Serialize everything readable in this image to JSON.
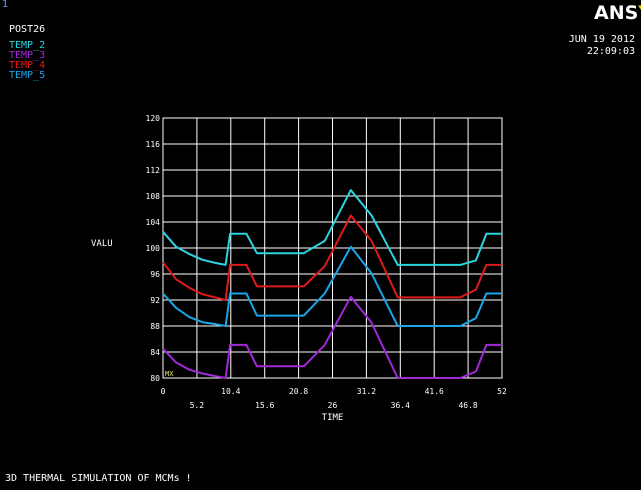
{
  "window_number": "1",
  "processor": "POST26",
  "logo": {
    "main": "ANS",
    "tail": "Y"
  },
  "date": "JUN 19 2012",
  "time": "22:09:03",
  "footer_title": "3D THERMAL SIMULATION OF MCMs !",
  "chart_data": {
    "type": "line",
    "title": "3D THERMAL SIMULATION OF MCMs !",
    "xlabel": "TIME",
    "ylabel": "VALU",
    "xlim": [
      0,
      52
    ],
    "ylim": [
      80,
      120
    ],
    "grid": true,
    "legend_position": "top-left",
    "x_ticks": [
      "0",
      "5.2",
      "10.4",
      "15.6",
      "20.8",
      "26",
      "31.2",
      "36.4",
      "41.6",
      "46.8",
      "52"
    ],
    "y_ticks": [
      "80",
      "84",
      "88",
      "92",
      "96",
      "100",
      "104",
      "108",
      "112",
      "116",
      "120"
    ],
    "axis_marker": "MX",
    "series": [
      {
        "name": "TEMP_2",
        "color": "#2ad4e0",
        "x": [
          0,
          2,
          4,
          6,
          8,
          9.6,
          10.3,
          12.8,
          14.4,
          21.6,
          24.8,
          28.8,
          32,
          36,
          38,
          40,
          43.2,
          45.6,
          48,
          49.6,
          52
        ],
        "y": [
          102.5,
          100.2,
          99.1,
          98.2,
          97.7,
          97.4,
          102.2,
          102.2,
          99.2,
          99.2,
          101.1,
          108.9,
          105,
          97.4,
          97.4,
          97.4,
          97.4,
          97.4,
          98.1,
          102.2,
          102.2
        ]
      },
      {
        "name": "TEMP_3",
        "color": "#a02ad8",
        "x": [
          0,
          2,
          4,
          6,
          8,
          9.6,
          10.3,
          12.8,
          14.4,
          21.6,
          24.8,
          28.8,
          32,
          36,
          38,
          40,
          43.2,
          45.6,
          48,
          49.6,
          52
        ],
        "y": [
          84.5,
          82.4,
          81.3,
          80.7,
          80.3,
          80.0,
          85.1,
          85.1,
          81.8,
          81.8,
          85.1,
          92.5,
          88.5,
          80.0,
          80.0,
          80.0,
          80.0,
          80.0,
          81.0,
          85.1,
          85.1
        ]
      },
      {
        "name": "TEMP_4",
        "color": "#e01a1a",
        "x": [
          0,
          2,
          4,
          6,
          8,
          9.6,
          10.3,
          12.8,
          14.4,
          21.6,
          24.8,
          28.8,
          32,
          36,
          38,
          40,
          43.2,
          45.6,
          48,
          49.6,
          52
        ],
        "y": [
          97.8,
          95.2,
          93.9,
          92.9,
          92.4,
          92.0,
          97.4,
          97.4,
          94.1,
          94.1,
          97.2,
          105.0,
          101.1,
          92.4,
          92.4,
          92.4,
          92.4,
          92.4,
          93.6,
          97.4,
          97.4
        ]
      },
      {
        "name": "TEMP_5",
        "color": "#1aa6e8",
        "x": [
          0,
          2,
          4,
          6,
          8,
          9.6,
          10.3,
          12.8,
          14.4,
          21.6,
          24.8,
          28.8,
          32,
          36,
          38,
          40,
          43.2,
          45.6,
          48,
          49.6,
          52
        ],
        "y": [
          93.0,
          90.8,
          89.4,
          88.6,
          88.3,
          88.0,
          93.0,
          93.0,
          89.6,
          89.6,
          93.0,
          100.2,
          96.1,
          88.0,
          88.0,
          88.0,
          88.0,
          88.0,
          89.2,
          93.0,
          93.0
        ]
      }
    ]
  }
}
